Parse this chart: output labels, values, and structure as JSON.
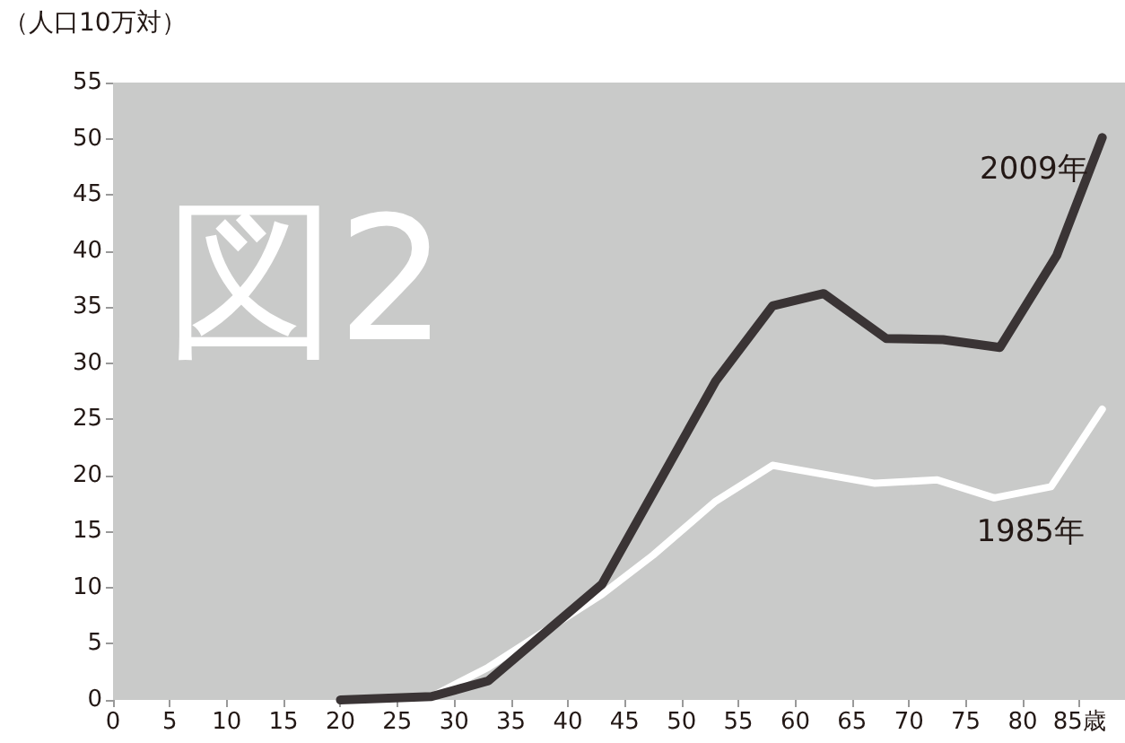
{
  "chart_data": {
    "type": "line",
    "ylabel": "（人口10万対）",
    "annotations": [
      "図2"
    ],
    "xlim": [
      0,
      89
    ],
    "xticks": [
      0,
      5,
      10,
      15,
      20,
      25,
      30,
      35,
      40,
      45,
      50,
      55,
      60,
      65,
      70,
      75,
      80,
      {
        "value": 85,
        "label": "85歳"
      }
    ],
    "ylim": [
      0,
      55
    ],
    "yticks": [
      0,
      5,
      10,
      15,
      20,
      25,
      30,
      35,
      40,
      45,
      50,
      55
    ],
    "marker": "none",
    "line_style": "solid",
    "series": [
      {
        "name": "2009年",
        "color": "#3a3435",
        "x": [
          20,
          28,
          33,
          43,
          53,
          58,
          62.5,
          68,
          73,
          78,
          83,
          87
        ],
        "values": [
          0,
          0.3,
          1.7,
          10.3,
          28.4,
          35.1,
          36.2,
          32.2,
          32.1,
          31.4,
          39.6,
          50.1
        ]
      },
      {
        "name": "1985年",
        "color": "#ffffff",
        "x": [
          28,
          33,
          43,
          47.5,
          53,
          58,
          67,
          72.5,
          77.5,
          82.5,
          87
        ],
        "values": [
          0.3,
          2.9,
          9.4,
          12.9,
          17.7,
          20.9,
          19.3,
          19.6,
          18.0,
          19.0,
          25.9
        ]
      }
    ]
  }
}
